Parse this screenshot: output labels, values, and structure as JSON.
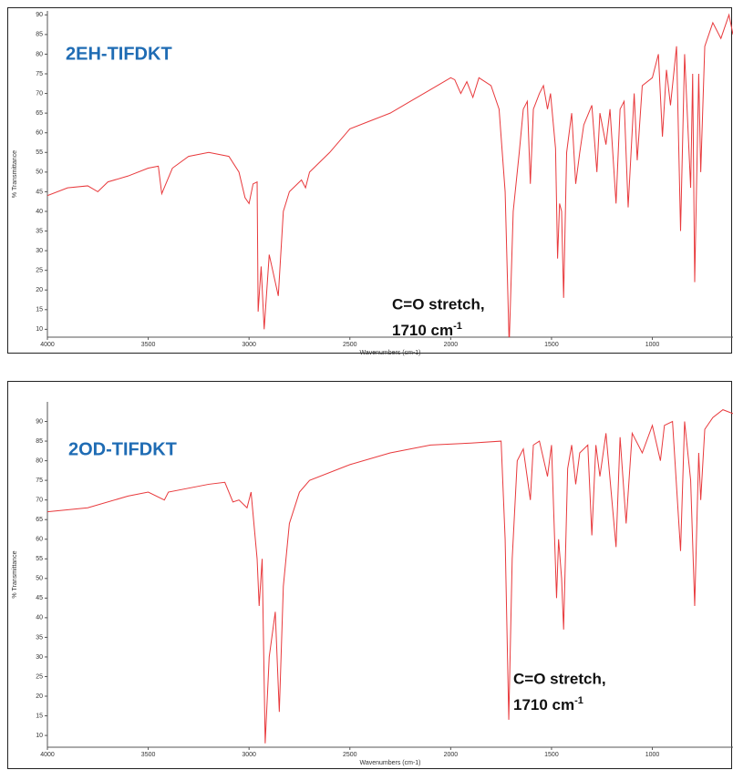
{
  "chart_data": [
    {
      "type": "line",
      "label": "2EH-TIFDKT",
      "x_label": "Wavenumbers (cm-1)",
      "y_label": "% Transmittance",
      "annotation": {
        "line1": "C=O stretch,",
        "line2": "1710 cm",
        "superscript": "-1"
      },
      "xlim": [
        4000,
        600
      ],
      "ylim": [
        8,
        91
      ],
      "xticks": [
        4000,
        3500,
        3000,
        2500,
        2000,
        1500,
        1000
      ],
      "yticks": [
        10,
        15,
        20,
        25,
        30,
        35,
        40,
        45,
        50,
        55,
        60,
        65,
        70,
        75,
        80,
        85,
        90
      ],
      "x": [
        4000,
        3900,
        3800,
        3750,
        3700,
        3600,
        3500,
        3450,
        3433,
        3380,
        3300,
        3200,
        3100,
        3050,
        3020,
        3000,
        2980,
        2960,
        2955,
        2940,
        2925,
        2900,
        2870,
        2855,
        2830,
        2800,
        2740,
        2720,
        2700,
        2600,
        2500,
        2400,
        2300,
        2200,
        2100,
        2000,
        1980,
        1950,
        1920,
        1890,
        1860,
        1800,
        1760,
        1730,
        1710,
        1690,
        1660,
        1640,
        1620,
        1605,
        1590,
        1560,
        1540,
        1520,
        1505,
        1480,
        1470,
        1460,
        1450,
        1440,
        1425,
        1400,
        1380,
        1360,
        1340,
        1300,
        1275,
        1260,
        1230,
        1210,
        1180,
        1160,
        1140,
        1120,
        1090,
        1075,
        1050,
        1000,
        970,
        950,
        930,
        910,
        880,
        860,
        840,
        810,
        800,
        790,
        770,
        760,
        740,
        700,
        660,
        620,
        600
      ],
      "series": [
        {
          "color": "#e8393c",
          "values": [
            44,
            46,
            46.5,
            45,
            47.5,
            49,
            51,
            51.5,
            44.5,
            51,
            54,
            55,
            54,
            50,
            43.5,
            42,
            47,
            47.5,
            14.5,
            26,
            10,
            29,
            22,
            18.5,
            40,
            45,
            48,
            46,
            50,
            55,
            61,
            63,
            65,
            68,
            71,
            74,
            73.5,
            70,
            73,
            69,
            74,
            72,
            66,
            45,
            6,
            40,
            55,
            66,
            68,
            47,
            66,
            70,
            72,
            66,
            70,
            56,
            28,
            42,
            40,
            18,
            55,
            65,
            47,
            55,
            62,
            67,
            50,
            65,
            57,
            66,
            42,
            66,
            68,
            41,
            70,
            53,
            72,
            74,
            80,
            59,
            76,
            67,
            82,
            35,
            80,
            46,
            75,
            22,
            75,
            50,
            82,
            88,
            84,
            90,
            85
          ]
        }
      ]
    },
    {
      "type": "line",
      "label": "2OD-TIFDKT",
      "x_label": "Wavenumbers (cm-1)",
      "y_label": "% Transmittance",
      "annotation": {
        "line1": "C=O stretch,",
        "line2": "1710 cm",
        "superscript": "-1"
      },
      "xlim": [
        4000,
        600
      ],
      "ylim": [
        7,
        95
      ],
      "xticks": [
        4000,
        3500,
        3000,
        2500,
        2000,
        1500,
        1000
      ],
      "yticks": [
        10,
        15,
        20,
        25,
        30,
        35,
        40,
        45,
        50,
        55,
        60,
        65,
        70,
        75,
        80,
        85,
        90
      ],
      "x": [
        4000,
        3800,
        3600,
        3500,
        3420,
        3400,
        3200,
        3120,
        3100,
        3080,
        3050,
        3010,
        2990,
        2960,
        2950,
        2935,
        2920,
        2900,
        2870,
        2850,
        2830,
        2800,
        2750,
        2700,
        2500,
        2300,
        2100,
        1900,
        1750,
        1730,
        1712,
        1695,
        1670,
        1640,
        1605,
        1590,
        1560,
        1520,
        1500,
        1475,
        1465,
        1450,
        1440,
        1420,
        1400,
        1380,
        1360,
        1320,
        1300,
        1280,
        1260,
        1230,
        1180,
        1160,
        1130,
        1100,
        1050,
        1000,
        960,
        940,
        900,
        860,
        840,
        810,
        790,
        770,
        760,
        740,
        700,
        650,
        600
      ],
      "series": [
        {
          "color": "#e8393c",
          "values": [
            67,
            68,
            71,
            72,
            70,
            72,
            74,
            74.5,
            72,
            69.5,
            70,
            68,
            72,
            55,
            43,
            55,
            8,
            30,
            41.5,
            16,
            48,
            64,
            72,
            75,
            79,
            82,
            84,
            84.5,
            85,
            60,
            14,
            55,
            80,
            83,
            70,
            84,
            85,
            76,
            84,
            45,
            60,
            50,
            37,
            78,
            84,
            74,
            82,
            84,
            61,
            84,
            76,
            87,
            58,
            86,
            64,
            87,
            82,
            89,
            80,
            89,
            90,
            57,
            90,
            75,
            43,
            82,
            70,
            88,
            91,
            93,
            92
          ]
        }
      ]
    }
  ]
}
